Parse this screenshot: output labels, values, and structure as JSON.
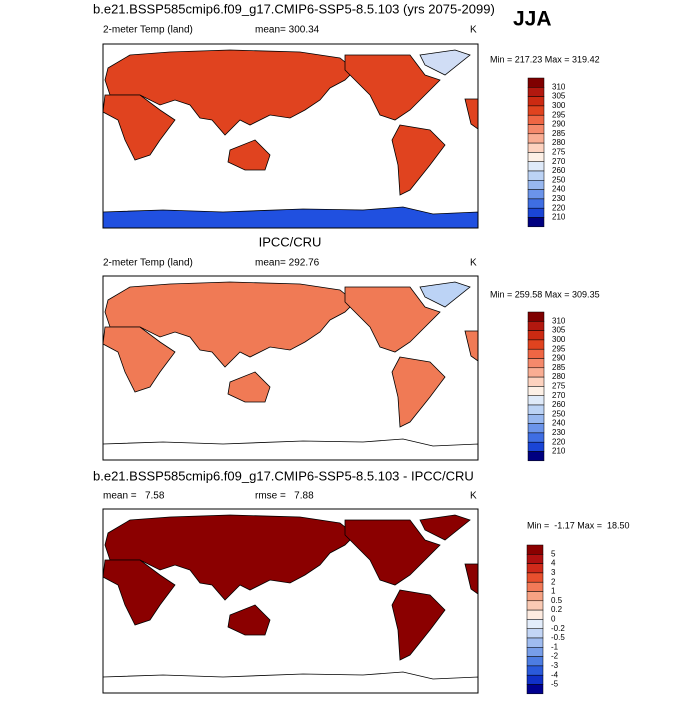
{
  "header": {
    "season": "JJA"
  },
  "panels": [
    {
      "title": "b.e21.BSSP585cmip6.f09_g17.CMIP6-SSP5-8.5.103 (yrs 2075-2099)",
      "left": "2-meter Temp (land)",
      "center": "mean= 300.34",
      "right": "K",
      "minmax": "Min = 217.23 Max = 319.42",
      "colorbar": {
        "labels": [
          "310",
          "305",
          "300",
          "295",
          "290",
          "285",
          "280",
          "275",
          "270",
          "260",
          "250",
          "240",
          "230",
          "220",
          "210"
        ],
        "colors": [
          "#7f0000",
          "#b2180f",
          "#cc2a12",
          "#e0431f",
          "#ef6644",
          "#f5896b",
          "#f9ad93",
          "#fdd2bf",
          "#fdf0e6",
          "#dfeaf9",
          "#bcd3f5",
          "#98b8f0",
          "#6b94ea",
          "#3f6ee3",
          "#1a45d6",
          "#000080"
        ]
      }
    },
    {
      "title": "IPCC/CRU",
      "left": "2-meter Temp (land)",
      "center": "mean= 292.76",
      "right": "K",
      "minmax": "Min = 259.58 Max = 309.35",
      "colorbar": {
        "labels": [
          "310",
          "305",
          "300",
          "295",
          "290",
          "285",
          "280",
          "275",
          "270",
          "260",
          "250",
          "240",
          "230",
          "220",
          "210"
        ],
        "colors": [
          "#7f0000",
          "#b2180f",
          "#cc2a12",
          "#e0431f",
          "#ef6644",
          "#f5896b",
          "#f9ad93",
          "#fdd2bf",
          "#fdf0e6",
          "#dfeaf9",
          "#bcd3f5",
          "#98b8f0",
          "#6b94ea",
          "#3f6ee3",
          "#1a45d6",
          "#000080"
        ]
      }
    },
    {
      "title": "b.e21.BSSP585cmip6.f09_g17.CMIP6-SSP5-8.5.103 - IPCC/CRU",
      "left": "mean =   7.58",
      "center": "rmse =   7.88",
      "right": "K",
      "minmax": "Min =  -1.17 Max =  18.50",
      "colorbar": {
        "labels": [
          "5",
          "4",
          "3",
          "2",
          "1",
          "0.5",
          "0.2",
          "0",
          "-0.2",
          "-0.5",
          "-1",
          "-2",
          "-3",
          "-4",
          "-5"
        ],
        "colors": [
          "#8b0000",
          "#b01010",
          "#d02a1a",
          "#e8502e",
          "#f27a58",
          "#f6a283",
          "#facab4",
          "#fdebe0",
          "#e3edfb",
          "#c3d6f6",
          "#9fbcf0",
          "#779ee9",
          "#4d7de2",
          "#2a5adb",
          "#1030c8",
          "#000090"
        ]
      }
    }
  ]
}
